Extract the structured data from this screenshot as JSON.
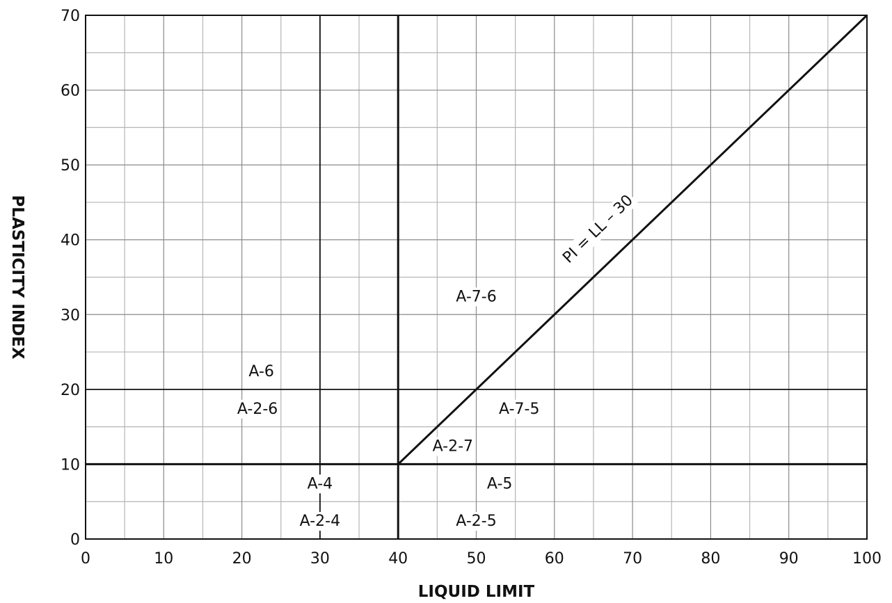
{
  "chart_data": {
    "type": "line",
    "title": "",
    "xlabel": "LIQUID LIMIT",
    "ylabel": "PLASTICITY INDEX",
    "xlim": [
      0,
      100
    ],
    "ylim": [
      0,
      70
    ],
    "grid": true,
    "minor_grid_step_x": 5,
    "minor_grid_step_y": 5,
    "x_ticks": [
      0,
      10,
      20,
      30,
      40,
      50,
      60,
      70,
      80,
      90,
      100
    ],
    "y_ticks": [
      0,
      10,
      20,
      30,
      40,
      50,
      60,
      70
    ],
    "boundary_lines": [
      {
        "kind": "vertical",
        "x": 40,
        "y_range": [
          0,
          70
        ],
        "weight": "heavy"
      },
      {
        "kind": "horizontal",
        "y": 10,
        "x_range": [
          0,
          100
        ],
        "weight": "heavy"
      },
      {
        "kind": "vertical",
        "x": 30,
        "y_range": [
          0,
          70
        ],
        "weight": "medium"
      },
      {
        "kind": "horizontal",
        "y": 20,
        "x_range": [
          0,
          100
        ],
        "weight": "medium"
      },
      {
        "kind": "diagonal",
        "x": [
          40,
          100
        ],
        "y": [
          10,
          70
        ],
        "weight": "heavy"
      }
    ],
    "annotations": [
      {
        "text": "PI = LL – 30",
        "x": 65.5,
        "y": 41.5,
        "angle_deg": -44
      },
      {
        "text": "A-7-6",
        "x": 50,
        "y": 32.5
      },
      {
        "text": "A-6",
        "x": 22.5,
        "y": 22.5
      },
      {
        "text": "A-2-6",
        "x": 22,
        "y": 17.5
      },
      {
        "text": "A-7-5",
        "x": 55.5,
        "y": 17.5
      },
      {
        "text": "A-2-7",
        "x": 47,
        "y": 12.5
      },
      {
        "text": "A-4",
        "x": 30,
        "y": 7.5
      },
      {
        "text": "A-5",
        "x": 53,
        "y": 7.5
      },
      {
        "text": "A-2-4",
        "x": 30,
        "y": 2.5
      },
      {
        "text": "A-2-5",
        "x": 50,
        "y": 2.5
      }
    ]
  }
}
